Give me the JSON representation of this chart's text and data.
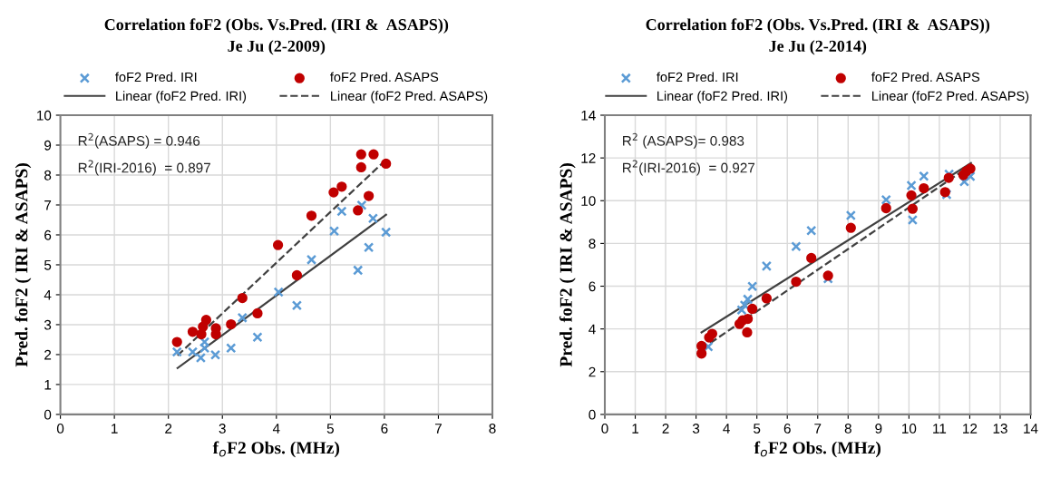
{
  "chart_data": [
    {
      "type": "scatter",
      "title": "Correlation foF2 (Obs. Vs.Pred. (IRI &  ASAPS))",
      "subtitle": "Je Ju (2-2009)",
      "xlabel": "f$_{o}$F2 Obs. (MHz)",
      "ylabel": "Pred. foF2 ( IRI & ASAPS)",
      "xlim": [
        0,
        8
      ],
      "xticks": [
        0,
        1,
        2,
        3,
        4,
        5,
        6,
        7,
        8
      ],
      "ylim": [
        0,
        10
      ],
      "yticks": [
        0,
        1,
        2,
        3,
        4,
        5,
        6,
        7,
        8,
        9,
        10
      ],
      "grid": true,
      "legend": "top",
      "annotations": [
        "R$^{2}$(ASAPS) = 0.946",
        "R$^{2}$(IRI-2016)  = 0.897"
      ],
      "series": [
        {
          "name": "foF2 Pred. IRI",
          "marker": "cross",
          "color": "#5b9bd5",
          "x": [
            2.16,
            2.45,
            2.6,
            2.67,
            2.67,
            2.87,
            3.16,
            3.37,
            3.65,
            4.04,
            4.38,
            4.65,
            5.07,
            5.21,
            5.51,
            5.58,
            5.71,
            5.79,
            6.03
          ],
          "values": [
            2.09,
            2.09,
            1.89,
            2.22,
            2.42,
            1.99,
            2.22,
            3.23,
            2.58,
            4.09,
            3.64,
            5.17,
            6.13,
            6.79,
            4.82,
            6.99,
            5.58,
            6.55,
            6.09
          ]
        },
        {
          "name": "Linear (foF2 Pred. IRI)",
          "type": "line",
          "line_style": "solid",
          "color": "#404040",
          "x": [
            2.17,
            6.03
          ],
          "values": [
            1.55,
            6.67
          ]
        },
        {
          "name": "foF2 Pred. ASAPS",
          "marker": "circle",
          "color": "#c00000",
          "x": [
            2.16,
            2.45,
            2.61,
            2.64,
            2.7,
            2.88,
            2.88,
            3.16,
            3.37,
            3.65,
            4.03,
            4.38,
            4.65,
            5.06,
            5.21,
            5.51,
            5.57,
            5.57,
            5.71,
            5.8,
            6.03
          ],
          "values": [
            2.42,
            2.76,
            2.68,
            2.93,
            3.16,
            2.88,
            2.68,
            3.01,
            3.89,
            3.38,
            5.66,
            4.65,
            6.64,
            7.42,
            7.61,
            6.82,
            8.26,
            8.69,
            7.3,
            8.69,
            8.38
          ]
        },
        {
          "name": "Linear (foF2 Pred. ASAPS)",
          "type": "line",
          "line_style": "dashed",
          "color": "#404040",
          "x": [
            2.17,
            6.03
          ],
          "values": [
            1.97,
            8.51
          ]
        }
      ]
    },
    {
      "type": "scatter",
      "title": "Correlation foF2 (Obs. Vs.Pred. (IRI &  ASAPS))",
      "subtitle": "Je Ju (2-2014)",
      "xlabel": "f$_{o}$F2 Obs. (MHz)",
      "ylabel": "Pred. foF2 ( IRI & ASAPS)",
      "xlim": [
        0,
        14
      ],
      "xticks": [
        0,
        1,
        2,
        3,
        4,
        5,
        6,
        7,
        8,
        9,
        10,
        11,
        12,
        13,
        14
      ],
      "ylim": [
        0,
        14
      ],
      "yticks": [
        0,
        2,
        4,
        6,
        8,
        10,
        12,
        14
      ],
      "grid": true,
      "legend": "top",
      "annotations": [
        "R$^{2}$ (ASAPS)= 0.983",
        "R$^{2}$(IRI-2016)  = 0.927"
      ],
      "series": [
        {
          "name": "foF2 Pred. IRI",
          "marker": "cross",
          "color": "#5b9bd5",
          "x": [
            3.4,
            4.5,
            4.6,
            4.7,
            4.85,
            5.32,
            6.29,
            6.79,
            7.34,
            8.09,
            9.25,
            10.08,
            10.12,
            10.49,
            11.24,
            11.32,
            11.82,
            12.02
          ],
          "values": [
            3.17,
            4.89,
            5.11,
            5.39,
            5.99,
            6.94,
            7.86,
            8.6,
            6.35,
            9.31,
            10.04,
            10.71,
            9.1,
            11.15,
            10.29,
            11.24,
            10.89,
            11.14
          ]
        },
        {
          "name": "Linear (foF2 Pred. IRI)",
          "type": "line",
          "line_style": "solid",
          "color": "#404040",
          "x": [
            3.18,
            12.04
          ],
          "values": [
            3.84,
            11.76
          ]
        },
        {
          "name": "foF2 Pred. ASAPS",
          "marker": "circle",
          "color": "#c00000",
          "x": [
            3.18,
            3.18,
            3.43,
            3.53,
            4.43,
            4.53,
            4.68,
            4.7,
            4.85,
            5.32,
            6.29,
            6.79,
            7.34,
            8.09,
            9.25,
            10.08,
            10.12,
            10.49,
            11.19,
            11.31,
            11.79,
            11.89,
            12.02
          ],
          "values": [
            2.85,
            3.2,
            3.6,
            3.77,
            4.23,
            4.4,
            3.84,
            4.47,
            4.94,
            5.43,
            6.21,
            7.32,
            6.49,
            8.73,
            9.65,
            10.25,
            9.62,
            10.58,
            10.4,
            11.07,
            11.2,
            11.38,
            11.5
          ]
        },
        {
          "name": "Linear (foF2 Pred. ASAPS)",
          "type": "line",
          "line_style": "dashed",
          "color": "#404040",
          "x": [
            3.18,
            12.04
          ],
          "values": [
            3.06,
            11.66
          ]
        }
      ]
    }
  ]
}
